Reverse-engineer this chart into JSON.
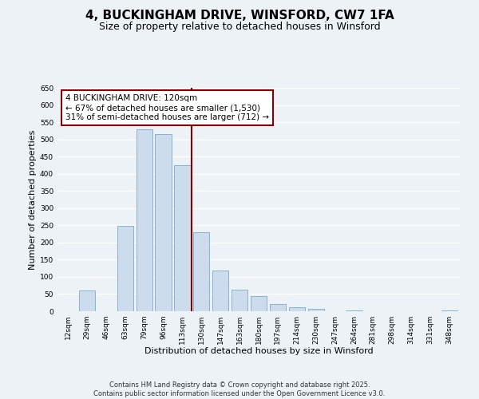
{
  "title": "4, BUCKINGHAM DRIVE, WINSFORD, CW7 1FA",
  "subtitle": "Size of property relative to detached houses in Winsford",
  "xlabel": "Distribution of detached houses by size in Winsford",
  "ylabel": "Number of detached properties",
  "bar_color": "#ccdcec",
  "bar_edge_color": "#7aaacb",
  "bin_labels": [
    "12sqm",
    "29sqm",
    "46sqm",
    "63sqm",
    "79sqm",
    "96sqm",
    "113sqm",
    "130sqm",
    "147sqm",
    "163sqm",
    "180sqm",
    "197sqm",
    "214sqm",
    "230sqm",
    "247sqm",
    "264sqm",
    "281sqm",
    "298sqm",
    "314sqm",
    "331sqm",
    "348sqm"
  ],
  "bar_values": [
    0,
    60,
    0,
    248,
    530,
    515,
    425,
    230,
    118,
    63,
    45,
    22,
    12,
    8,
    0,
    3,
    0,
    0,
    0,
    0,
    3
  ],
  "ylim": [
    0,
    650
  ],
  "yticks": [
    0,
    50,
    100,
    150,
    200,
    250,
    300,
    350,
    400,
    450,
    500,
    550,
    600,
    650
  ],
  "vline_x": 6.5,
  "vline_color": "#880000",
  "annotation_title": "4 BUCKINGHAM DRIVE: 120sqm",
  "annotation_line1": "← 67% of detached houses are smaller (1,530)",
  "annotation_line2": "31% of semi-detached houses are larger (712) →",
  "annotation_box_color": "#ffffff",
  "annotation_box_edge_color": "#880000",
  "footnote1": "Contains HM Land Registry data © Crown copyright and database right 2025.",
  "footnote2": "Contains public sector information licensed under the Open Government Licence v3.0.",
  "bg_color": "#edf2f7",
  "grid_color": "#ffffff",
  "title_fontsize": 11,
  "subtitle_fontsize": 9,
  "axis_label_fontsize": 8,
  "tick_fontsize": 6.5,
  "annotation_fontsize": 7.5,
  "footnote_fontsize": 6
}
